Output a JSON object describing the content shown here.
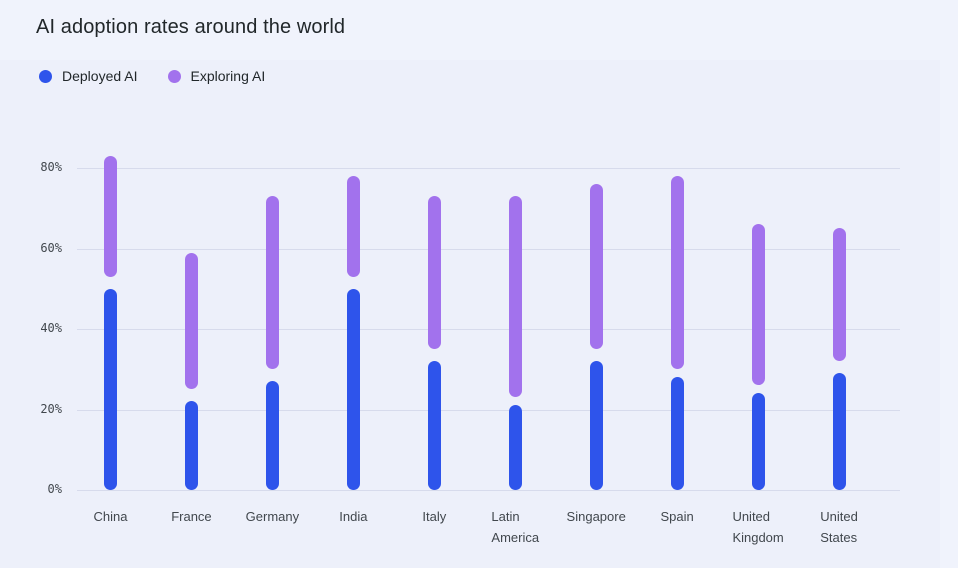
{
  "page": {
    "title": "AI adoption rates around the world"
  },
  "legend": {
    "items": [
      {
        "label": "Deployed AI",
        "color": "#2E54EB"
      },
      {
        "label": "Exploring AI",
        "color": "#A272ED"
      }
    ]
  },
  "chart_data": {
    "type": "bar",
    "subtype": "vertical-floating-range-bars",
    "title": "AI adoption rates around the world",
    "categories": [
      "China",
      "France",
      "Germany",
      "India",
      "Italy",
      "Latin America",
      "Singapore",
      "Spain",
      "United Kingdom",
      "United States"
    ],
    "series": [
      {
        "name": "Deployed AI",
        "color": "#2E54EB",
        "ranges": [
          [
            0,
            50
          ],
          [
            0,
            22
          ],
          [
            0,
            27
          ],
          [
            0,
            50
          ],
          [
            0,
            32
          ],
          [
            0,
            21
          ],
          [
            0,
            32
          ],
          [
            0,
            28
          ],
          [
            0,
            24
          ],
          [
            0,
            29
          ]
        ]
      },
      {
        "name": "Exploring AI",
        "color": "#A272ED",
        "ranges": [
          [
            53,
            83
          ],
          [
            25,
            59
          ],
          [
            30,
            73
          ],
          [
            53,
            78
          ],
          [
            35,
            73
          ],
          [
            23,
            73
          ],
          [
            35,
            76
          ],
          [
            30,
            78
          ],
          [
            26,
            66
          ],
          [
            32,
            65
          ]
        ]
      }
    ],
    "xlabel": "",
    "ylabel": "",
    "ylim": [
      0,
      88
    ],
    "yticks": [
      0,
      20,
      40,
      60,
      80
    ],
    "ytick_labels": [
      "0%",
      "20%",
      "40%",
      "60%",
      "80%"
    ],
    "grid": true,
    "legend_position": "top-left"
  },
  "colors": {
    "page_bg": "#F0F3FC",
    "chart_bg": "#EDF0FA",
    "gridline": "#D7DBEC",
    "title_text": "#21272A",
    "tick_text": "#41474D"
  }
}
